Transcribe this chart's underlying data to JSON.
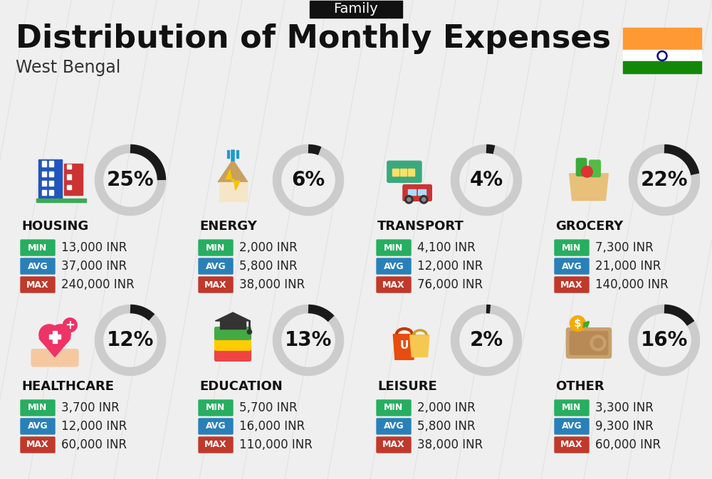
{
  "title": "Distribution of Monthly Expenses",
  "subtitle": "West Bengal",
  "tag": "Family",
  "bg_color": "#efefef",
  "categories": [
    {
      "name": "HOUSING",
      "pct": 25,
      "min_val": "13,000 INR",
      "avg_val": "37,000 INR",
      "max_val": "240,000 INR",
      "col": 0,
      "row": 0
    },
    {
      "name": "ENERGY",
      "pct": 6,
      "min_val": "2,000 INR",
      "avg_val": "5,800 INR",
      "max_val": "38,000 INR",
      "col": 1,
      "row": 0
    },
    {
      "name": "TRANSPORT",
      "pct": 4,
      "min_val": "4,100 INR",
      "avg_val": "12,000 INR",
      "max_val": "76,000 INR",
      "col": 2,
      "row": 0
    },
    {
      "name": "GROCERY",
      "pct": 22,
      "min_val": "7,300 INR",
      "avg_val": "21,000 INR",
      "max_val": "140,000 INR",
      "col": 3,
      "row": 0
    },
    {
      "name": "HEALTHCARE",
      "pct": 12,
      "min_val": "3,700 INR",
      "avg_val": "12,000 INR",
      "max_val": "60,000 INR",
      "col": 0,
      "row": 1
    },
    {
      "name": "EDUCATION",
      "pct": 13,
      "min_val": "5,700 INR",
      "avg_val": "16,000 INR",
      "max_val": "110,000 INR",
      "col": 1,
      "row": 1
    },
    {
      "name": "LEISURE",
      "pct": 2,
      "min_val": "2,000 INR",
      "avg_val": "5,800 INR",
      "max_val": "38,000 INR",
      "col": 2,
      "row": 1
    },
    {
      "name": "OTHER",
      "pct": 16,
      "min_val": "3,300 INR",
      "avg_val": "9,300 INR",
      "max_val": "60,000 INR",
      "col": 3,
      "row": 1
    }
  ],
  "min_color": "#27ae60",
  "avg_color": "#2980b9",
  "max_color": "#c0392b",
  "dark_arc_color": "#1a1a1a",
  "light_arc_color": "#cccccc",
  "title_fontsize": 32,
  "subtitle_fontsize": 17,
  "tag_fontsize": 14,
  "cat_fontsize": 13,
  "val_fontsize": 12,
  "pct_fontsize": 20,
  "badge_fontsize": 9
}
